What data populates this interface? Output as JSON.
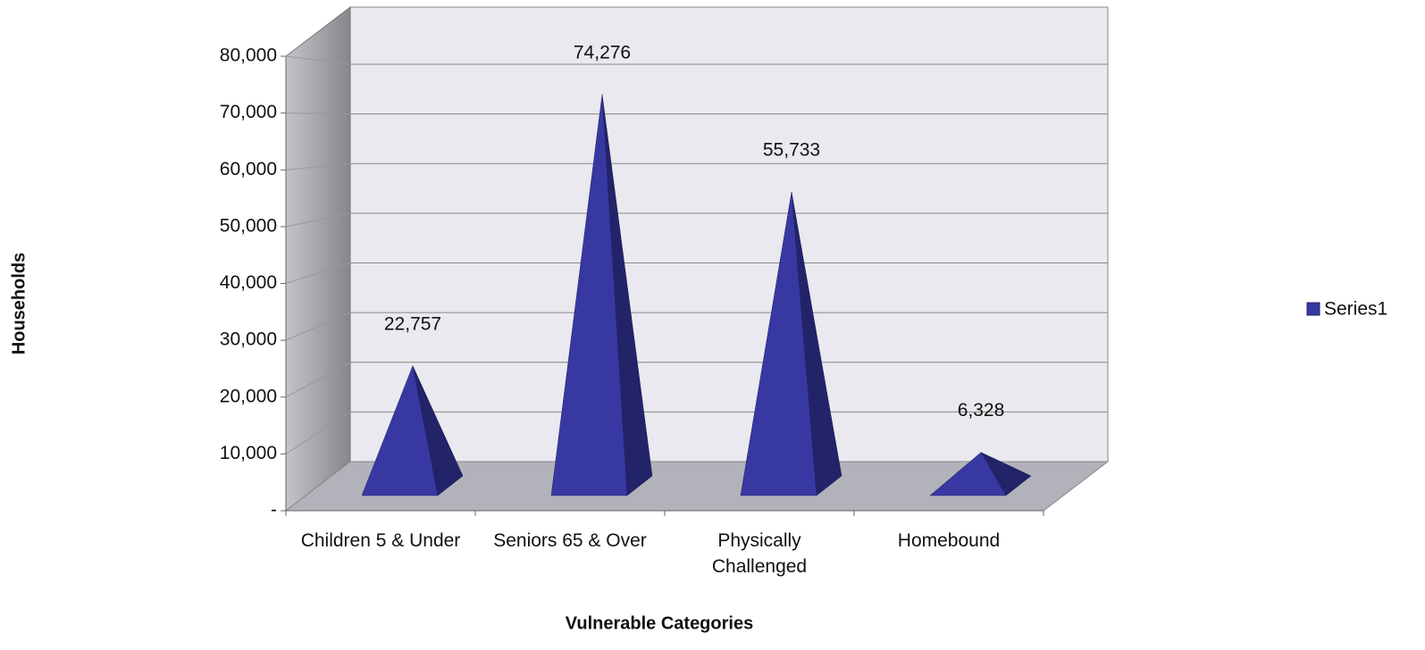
{
  "chart_data": {
    "type": "bar3d-pyramid",
    "xlabel": "Vulnerable Categories",
    "ylabel": "Households",
    "categories": [
      "Children 5 & Under",
      "Seniors 65 & Over",
      "Physically Challenged",
      "Homebound"
    ],
    "series": [
      {
        "name": "Series1",
        "color": "#3838a2",
        "values": [
          22757,
          74276,
          55733,
          6328
        ],
        "value_labels": [
          "22,757",
          "74,276",
          "55,733",
          "6,328"
        ]
      }
    ],
    "ylim": [
      0,
      80000
    ],
    "yticks": [
      {
        "value": 0,
        "label": "-"
      },
      {
        "value": 10000,
        "label": "10,000"
      },
      {
        "value": 20000,
        "label": "20,000"
      },
      {
        "value": 30000,
        "label": "30,000"
      },
      {
        "value": 40000,
        "label": "40,000"
      },
      {
        "value": 50000,
        "label": "50,000"
      },
      {
        "value": 60000,
        "label": "60,000"
      },
      {
        "value": 70000,
        "label": "70,000"
      },
      {
        "value": 80000,
        "label": "80,000"
      }
    ],
    "grid": true,
    "legend": "right"
  }
}
